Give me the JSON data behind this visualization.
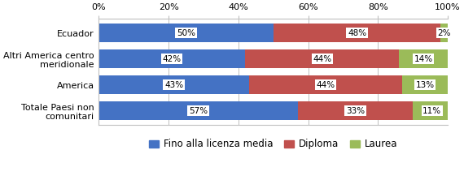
{
  "categories": [
    "Ecuador",
    "Altri America centro\nmeridionale",
    "America",
    "Totale Paesi non\ncomunitari"
  ],
  "series": {
    "Fino alla licenza media": [
      50,
      42,
      43,
      57
    ],
    "Diploma": [
      48,
      44,
      44,
      33
    ],
    "Laurea": [
      2,
      14,
      13,
      11
    ]
  },
  "colors": {
    "Fino alla licenza media": "#4472C4",
    "Diploma": "#C0504D",
    "Laurea": "#9BBB59"
  },
  "xlim": [
    0,
    100
  ],
  "xticks": [
    0,
    20,
    40,
    60,
    80,
    100
  ],
  "xticklabels": [
    "0%",
    "20%",
    "40%",
    "60%",
    "80%",
    "100%"
  ],
  "bar_height": 0.72,
  "label_fontsize": 7.5,
  "legend_fontsize": 8.5,
  "tick_fontsize": 8,
  "ytick_fontsize": 8,
  "background_color": "#FFFFFF",
  "edge_color": "#FFFFFF",
  "grid_color": "#C0C0C0",
  "label_box_color": "#FFFFFF"
}
